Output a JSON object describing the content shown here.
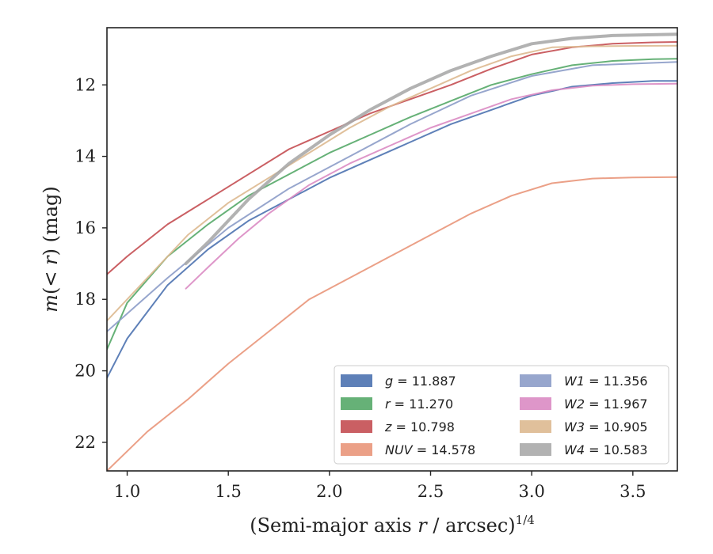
{
  "chart_data": {
    "type": "line",
    "xlabel_main": "(Semi-major axis ",
    "xlabel_var": "r",
    "xlabel_unit": " / arcsec)",
    "xlabel_power": "1/4",
    "ylabel_main": "m(< r) (mag)",
    "xlim": [
      0.9,
      3.72
    ],
    "ylim": [
      22.8,
      10.4
    ],
    "y_inverted": true,
    "x_ticks": [
      "1.0",
      "1.5",
      "2.0",
      "2.5",
      "3.0",
      "3.5"
    ],
    "y_ticks": [
      "12",
      "14",
      "16",
      "18",
      "20",
      "22"
    ],
    "grid": false,
    "legend_position": "lower-right",
    "series": [
      {
        "name": "g",
        "legend": "g = 11.887",
        "color": "#4C72B0",
        "width": 2,
        "x": [
          0.9,
          1.0,
          1.2,
          1.4,
          1.6,
          1.8,
          2.0,
          2.2,
          2.4,
          2.6,
          2.8,
          3.0,
          3.2,
          3.4,
          3.6,
          3.72
        ],
        "y": [
          20.2,
          19.1,
          17.6,
          16.6,
          15.8,
          15.2,
          14.6,
          14.1,
          13.6,
          13.1,
          12.7,
          12.3,
          12.05,
          11.95,
          11.89,
          11.887
        ]
      },
      {
        "name": "r",
        "legend": "r = 11.270",
        "color": "#55A868",
        "width": 2,
        "x": [
          0.9,
          1.0,
          1.2,
          1.4,
          1.6,
          1.8,
          2.0,
          2.2,
          2.4,
          2.6,
          2.8,
          3.0,
          3.2,
          3.4,
          3.6,
          3.72
        ],
        "y": [
          19.4,
          18.1,
          16.8,
          15.9,
          15.1,
          14.5,
          13.9,
          13.4,
          12.9,
          12.45,
          12.0,
          11.7,
          11.45,
          11.33,
          11.28,
          11.27
        ]
      },
      {
        "name": "z",
        "legend": "z = 10.798",
        "color": "#C44E52",
        "width": 2,
        "x": [
          0.9,
          1.0,
          1.2,
          1.4,
          1.6,
          1.8,
          2.0,
          2.2,
          2.4,
          2.6,
          2.8,
          3.0,
          3.2,
          3.4,
          3.6,
          3.72
        ],
        "y": [
          17.3,
          16.8,
          15.9,
          15.2,
          14.5,
          13.8,
          13.3,
          12.8,
          12.4,
          12.0,
          11.55,
          11.15,
          10.95,
          10.85,
          10.81,
          10.798
        ]
      },
      {
        "name": "NUV",
        "legend": "NUV = 14.578",
        "color": "#E9967A",
        "width": 2,
        "x": [
          0.9,
          1.1,
          1.3,
          1.5,
          1.7,
          1.9,
          2.1,
          2.3,
          2.5,
          2.7,
          2.9,
          3.1,
          3.3,
          3.5,
          3.72
        ],
        "y": [
          22.8,
          21.7,
          20.8,
          19.8,
          18.9,
          18.0,
          17.4,
          16.8,
          16.2,
          15.6,
          15.1,
          14.75,
          14.62,
          14.59,
          14.578
        ]
      },
      {
        "name": "W1",
        "legend": "W1 = 11.356",
        "color": "#8C9CC8",
        "width": 2,
        "x": [
          0.9,
          1.2,
          1.5,
          1.8,
          2.1,
          2.4,
          2.7,
          3.0,
          3.3,
          3.72
        ],
        "y": [
          18.9,
          17.4,
          16.0,
          14.9,
          14.0,
          13.1,
          12.3,
          11.75,
          11.45,
          11.356
        ]
      },
      {
        "name": "W2",
        "legend": "W2 = 11.967",
        "color": "#DA8BC3",
        "width": 2,
        "x": [
          1.29,
          1.4,
          1.55,
          1.7,
          1.9,
          2.1,
          2.3,
          2.5,
          2.7,
          2.9,
          3.1,
          3.3,
          3.5,
          3.72
        ],
        "y": [
          17.7,
          17.1,
          16.3,
          15.6,
          14.8,
          14.2,
          13.7,
          13.2,
          12.8,
          12.4,
          12.15,
          12.02,
          11.98,
          11.967
        ]
      },
      {
        "name": "W3",
        "legend": "W3 = 10.905",
        "color": "#DDB990",
        "width": 2,
        "x": [
          0.9,
          1.1,
          1.3,
          1.5,
          1.7,
          1.9,
          2.1,
          2.3,
          2.5,
          2.7,
          2.9,
          3.1,
          3.3,
          3.5,
          3.72
        ],
        "y": [
          18.6,
          17.4,
          16.2,
          15.3,
          14.6,
          13.9,
          13.2,
          12.6,
          12.1,
          11.6,
          11.2,
          10.95,
          10.92,
          10.91,
          10.905
        ]
      },
      {
        "name": "W4",
        "legend": "W4 = 10.583",
        "color": "#AAAAAA",
        "width": 4,
        "x": [
          1.29,
          1.4,
          1.5,
          1.6,
          1.8,
          2.0,
          2.2,
          2.4,
          2.6,
          2.8,
          3.0,
          3.2,
          3.4,
          3.72
        ],
        "y": [
          17.0,
          16.4,
          15.8,
          15.2,
          14.2,
          13.4,
          12.7,
          12.1,
          11.6,
          11.2,
          10.85,
          10.7,
          10.62,
          10.583
        ]
      }
    ],
    "legend_columns": [
      [
        "g",
        "r",
        "z",
        "NUV"
      ],
      [
        "W1",
        "W2",
        "W3",
        "W4"
      ]
    ],
    "legend_labels": {
      "g": {
        "var": "g",
        "eq": " = 11.887"
      },
      "r": {
        "var": "r",
        "eq": " = 11.270"
      },
      "z": {
        "var": "z",
        "eq": " = 10.798"
      },
      "NUV": {
        "var": "NUV",
        "eq": " = 14.578"
      },
      "W1": {
        "var": "W1",
        "eq": " = 11.356"
      },
      "W2": {
        "var": "W2",
        "eq": " = 11.967"
      },
      "W3": {
        "var": "W3",
        "eq": " = 10.905"
      },
      "W4": {
        "var": "W4",
        "eq": " = 10.583"
      }
    }
  }
}
